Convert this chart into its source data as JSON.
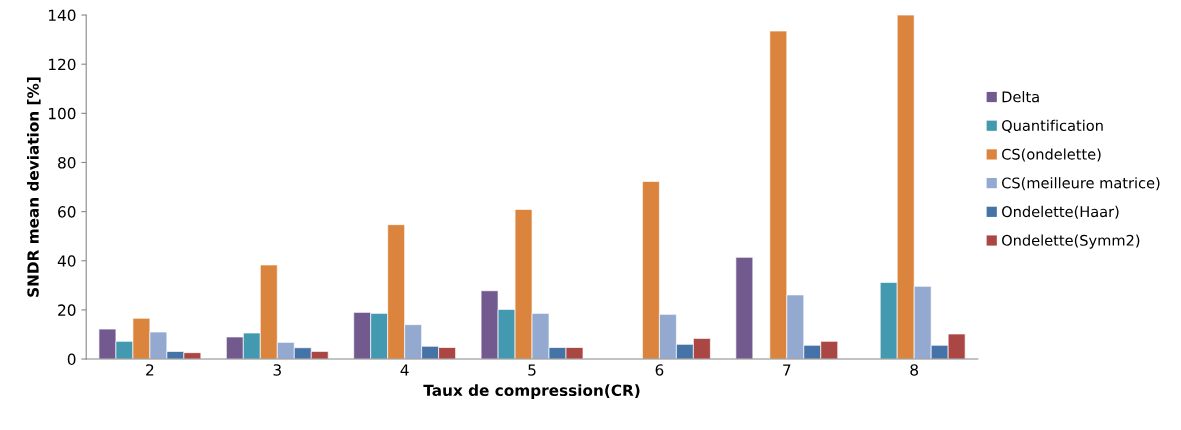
{
  "chart_data": {
    "type": "bar",
    "xlabel": "Taux de compression(CR)",
    "ylabel": "SNDR mean deviation [%]",
    "categories": [
      "2",
      "3",
      "4",
      "5",
      "6",
      "7",
      "8"
    ],
    "ylim": [
      0,
      140
    ],
    "yticks": [
      0,
      20,
      40,
      60,
      80,
      100,
      120,
      140
    ],
    "grid": false,
    "legend": "right",
    "series": [
      {
        "name": "Delta",
        "color": "#725a8e",
        "values": [
          12.2,
          9.0,
          19.0,
          27.8,
          null,
          41.4,
          null
        ]
      },
      {
        "name": "Quantification",
        "color": "#4299b0",
        "values": [
          7.2,
          10.6,
          18.6,
          20.2,
          null,
          null,
          31.2
        ]
      },
      {
        "name": "CS(ondelette)",
        "color": "#db843d",
        "values": [
          16.6,
          38.3,
          54.7,
          60.9,
          72.3,
          133.5,
          140
        ]
      },
      {
        "name": "CS(meilleure matrice)",
        "color": "#93a9d0",
        "values": [
          11.0,
          6.8,
          14.0,
          18.6,
          18.2,
          26.1,
          29.6
        ]
      },
      {
        "name": "Ondelette(Haar)",
        "color": "#4572a7",
        "values": [
          3.1,
          4.6,
          5.2,
          4.7,
          6.0,
          5.6,
          5.6
        ]
      },
      {
        "name": "Ondelette(Symm2)",
        "color": "#aa4643",
        "values": [
          2.6,
          3.1,
          4.7,
          4.7,
          8.4,
          7.2,
          10.2
        ]
      }
    ]
  }
}
